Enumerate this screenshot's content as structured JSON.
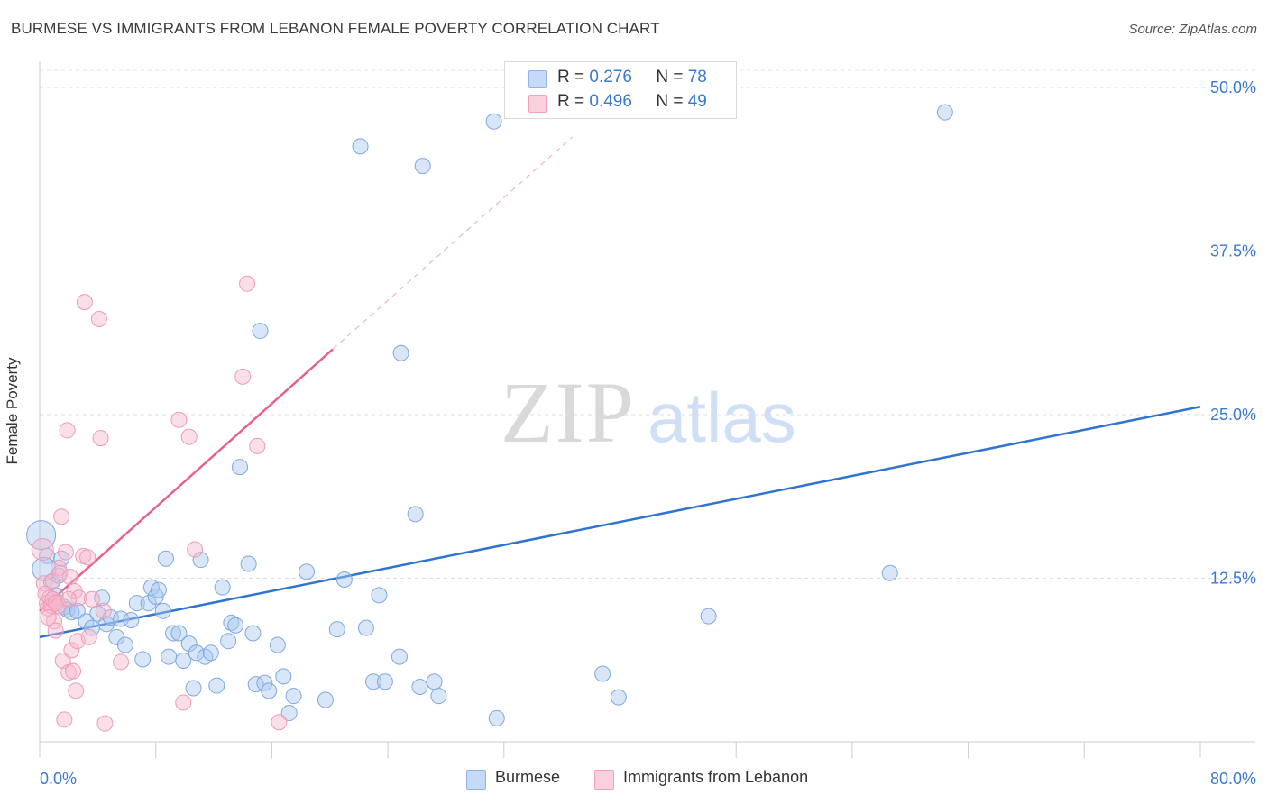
{
  "header": {
    "title": "BURMESE VS IMMIGRANTS FROM LEBANON FEMALE POVERTY CORRELATION CHART",
    "source": "Source: ZipAtlas.com"
  },
  "legend": {
    "series1": {
      "r_label": "R =",
      "r_value": "0.276",
      "n_label": "N =",
      "n_value": "78"
    },
    "series2": {
      "r_label": "R =",
      "r_value": "0.496",
      "n_label": "N =",
      "n_value": "49"
    }
  },
  "bottom_legend": {
    "series1": "Burmese",
    "series2": "Immigrants from Lebanon"
  },
  "colors": {
    "blue": "#a9c8f0",
    "blue_line": "#2f74d0",
    "pink": "#f6b8cb",
    "pink_line": "#e8608c",
    "axis_text": "#3b78d0"
  },
  "chart_data": {
    "type": "scatter",
    "ylabel": "Female Poverty",
    "xlim": [
      0,
      80
    ],
    "ylim": [
      0,
      50
    ],
    "x_tick_labels": [
      "0.0%",
      "80.0%"
    ],
    "y_tick_labels": [
      "12.5%",
      "25.0%",
      "37.5%",
      "50.0%"
    ],
    "y_ticks": [
      12.5,
      25.0,
      37.5,
      50.0
    ],
    "grid": true,
    "watermark": "ZIPatlas",
    "series": [
      {
        "name": "Burmese",
        "color": "#a9c8f0",
        "points": [
          [
            0.1,
            15.8
          ],
          [
            0.5,
            14.2
          ],
          [
            0.8,
            12.2
          ],
          [
            1.1,
            11.2
          ],
          [
            1.3,
            12.7
          ],
          [
            1.5,
            14.0
          ],
          [
            1.7,
            10.3
          ],
          [
            1.9,
            10.1
          ],
          [
            2.2,
            9.9
          ],
          [
            2.6,
            10.0
          ],
          [
            3.2,
            9.2
          ],
          [
            3.6,
            8.7
          ],
          [
            4.0,
            9.8
          ],
          [
            4.3,
            11.0
          ],
          [
            4.6,
            9.0
          ],
          [
            4.9,
            9.5
          ],
          [
            5.3,
            8.0
          ],
          [
            5.6,
            9.4
          ],
          [
            5.9,
            7.4
          ],
          [
            6.3,
            9.3
          ],
          [
            6.7,
            10.6
          ],
          [
            7.1,
            6.3
          ],
          [
            7.5,
            10.6
          ],
          [
            7.7,
            11.8
          ],
          [
            8.0,
            11.1
          ],
          [
            8.2,
            11.6
          ],
          [
            8.5,
            10.0
          ],
          [
            8.7,
            14.0
          ],
          [
            8.9,
            6.5
          ],
          [
            9.2,
            8.3
          ],
          [
            9.6,
            8.3
          ],
          [
            9.9,
            6.2
          ],
          [
            10.3,
            7.5
          ],
          [
            10.6,
            4.1
          ],
          [
            10.8,
            6.8
          ],
          [
            11.1,
            13.9
          ],
          [
            11.4,
            6.5
          ],
          [
            11.8,
            6.8
          ],
          [
            12.2,
            4.3
          ],
          [
            12.6,
            11.8
          ],
          [
            13.0,
            7.7
          ],
          [
            13.2,
            9.1
          ],
          [
            13.5,
            8.9
          ],
          [
            13.8,
            21.0
          ],
          [
            14.4,
            13.6
          ],
          [
            14.7,
            8.3
          ],
          [
            14.9,
            4.4
          ],
          [
            15.2,
            31.4
          ],
          [
            15.5,
            4.5
          ],
          [
            15.8,
            3.9
          ],
          [
            16.4,
            7.4
          ],
          [
            16.8,
            5.0
          ],
          [
            17.2,
            2.2
          ],
          [
            17.5,
            3.5
          ],
          [
            18.4,
            13.0
          ],
          [
            19.7,
            3.2
          ],
          [
            20.5,
            8.6
          ],
          [
            21.0,
            12.4
          ],
          [
            22.1,
            45.5
          ],
          [
            22.5,
            8.7
          ],
          [
            23.0,
            4.6
          ],
          [
            23.4,
            11.2
          ],
          [
            23.8,
            4.6
          ],
          [
            24.8,
            6.5
          ],
          [
            24.9,
            29.7
          ],
          [
            25.9,
            17.4
          ],
          [
            26.2,
            4.2
          ],
          [
            26.4,
            44.0
          ],
          [
            27.2,
            4.6
          ],
          [
            27.5,
            3.5
          ],
          [
            31.3,
            47.4
          ],
          [
            31.5,
            1.8
          ],
          [
            38.8,
            5.2
          ],
          [
            39.9,
            3.4
          ],
          [
            46.1,
            9.6
          ],
          [
            58.6,
            12.9
          ],
          [
            62.4,
            48.1
          ],
          [
            0.3,
            13.2
          ]
        ],
        "trend": [
          [
            0,
            8.0
          ],
          [
            80,
            25.6
          ]
        ]
      },
      {
        "name": "Immigrants from Lebanon",
        "color": "#f6b8cb",
        "points": [
          [
            0.2,
            14.7
          ],
          [
            0.3,
            12.1
          ],
          [
            0.4,
            11.3
          ],
          [
            0.5,
            10.6
          ],
          [
            0.6,
            10.2
          ],
          [
            0.7,
            11.0
          ],
          [
            0.8,
            10.4
          ],
          [
            0.9,
            12.3
          ],
          [
            1.0,
            9.2
          ],
          [
            1.1,
            8.5
          ],
          [
            1.2,
            10.7
          ],
          [
            1.3,
            13.3
          ],
          [
            1.4,
            12.9
          ],
          [
            1.5,
            17.2
          ],
          [
            1.6,
            6.2
          ],
          [
            1.7,
            1.7
          ],
          [
            1.8,
            14.5
          ],
          [
            1.9,
            23.8
          ],
          [
            2.0,
            5.3
          ],
          [
            2.1,
            12.6
          ],
          [
            2.2,
            7.0
          ],
          [
            2.3,
            5.4
          ],
          [
            2.4,
            11.5
          ],
          [
            2.5,
            3.9
          ],
          [
            2.6,
            7.7
          ],
          [
            2.7,
            11.0
          ],
          [
            3.0,
            14.2
          ],
          [
            3.1,
            33.6
          ],
          [
            3.3,
            14.1
          ],
          [
            3.4,
            8.0
          ],
          [
            3.6,
            10.9
          ],
          [
            4.1,
            32.3
          ],
          [
            4.2,
            23.2
          ],
          [
            4.4,
            10.0
          ],
          [
            4.5,
            1.4
          ],
          [
            5.6,
            6.1
          ],
          [
            9.6,
            24.6
          ],
          [
            9.9,
            3.0
          ],
          [
            10.3,
            23.3
          ],
          [
            10.7,
            14.7
          ],
          [
            14.0,
            27.9
          ],
          [
            14.3,
            35.0
          ],
          [
            15.0,
            22.6
          ],
          [
            16.5,
            1.5
          ],
          [
            0.9,
            10.9
          ],
          [
            1.1,
            10.6
          ],
          [
            1.3,
            10.4
          ],
          [
            2.0,
            10.9
          ],
          [
            0.6,
            9.5
          ]
        ],
        "trend": [
          [
            0,
            10.0
          ],
          [
            20.2,
            30.0
          ]
        ],
        "trend_extension": [
          [
            20.2,
            30.0
          ],
          [
            36.7,
            46.2
          ]
        ]
      }
    ]
  }
}
